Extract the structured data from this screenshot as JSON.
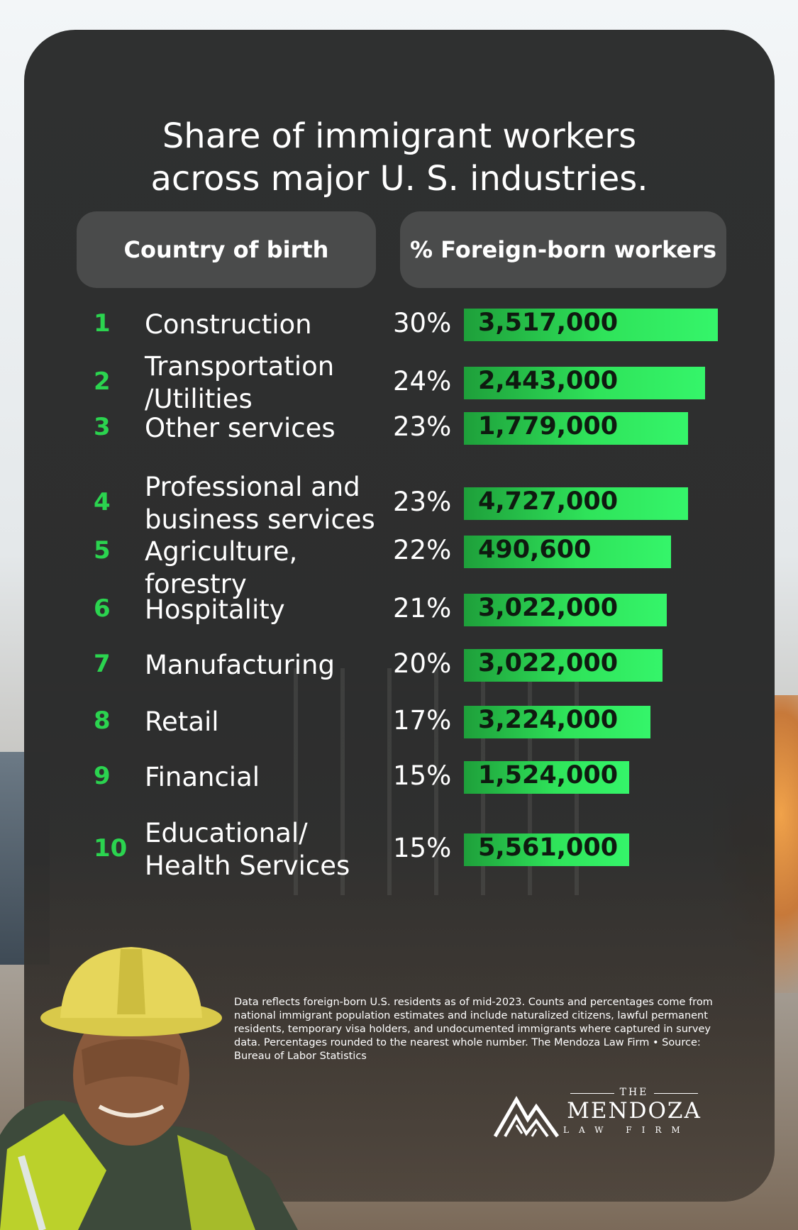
{
  "title_line1": "Share of immigrant workers",
  "title_line2": "across major U. S. industries.",
  "header_left": "Country of birth",
  "header_right": "% Foreign-born workers",
  "colors": {
    "accent_green": "#2bd44f",
    "bar_green": "#35f56a",
    "card": "#2f3030"
  },
  "chart_data": {
    "type": "bar",
    "title": "Share of immigrant workers across major U. S. industries.",
    "categories": [
      "Construction",
      "Transportation\n/Utilities",
      "Other services",
      "Professional and\nbusiness services",
      "Agriculture, forestry",
      "Hospitality",
      "Manufacturing",
      "Retail",
      "Financial",
      "Educational/\nHealth Services"
    ],
    "ranks": [
      "1",
      "2",
      "3",
      "4",
      "5",
      "6",
      "7",
      "8",
      "9",
      "10"
    ],
    "percent_labels": [
      "30%",
      "24%",
      "23%",
      "23%",
      "22%",
      "21%",
      "20%",
      "17%",
      "15%",
      "15%"
    ],
    "percent_values": [
      30,
      24,
      23,
      23,
      22,
      21,
      20,
      17,
      15,
      15
    ],
    "bar_values": [
      30,
      28.5,
      26.5,
      26.5,
      24.5,
      24,
      23.5,
      22,
      19.5,
      19.5
    ],
    "worker_labels": [
      "3,517,000",
      "2,443,000",
      "1,779,000",
      "4,727,000",
      "490,600",
      "3,022,000",
      "3,022,000",
      "3,224,000",
      "1,524,000",
      "5,561,000"
    ],
    "worker_values": [
      3517000,
      2443000,
      1779000,
      4727000,
      490600,
      3022000,
      3022000,
      3224000,
      1524000,
      5561000
    ]
  },
  "footnote": "Data reflects foreign-born U.S. residents as of mid-2023. Counts and percentages come from national immigrant population estimates and include naturalized citizens, lawful permanent residents, temporary visa holders, and undocumented immigrants where captured in survey data. Percentages rounded to the nearest whole number. The Mendoza Law Firm • Source: Bureau of Labor Statistics",
  "logo": {
    "the": "THE",
    "name": "MENDOZA",
    "sub": "LAW FIRM"
  }
}
